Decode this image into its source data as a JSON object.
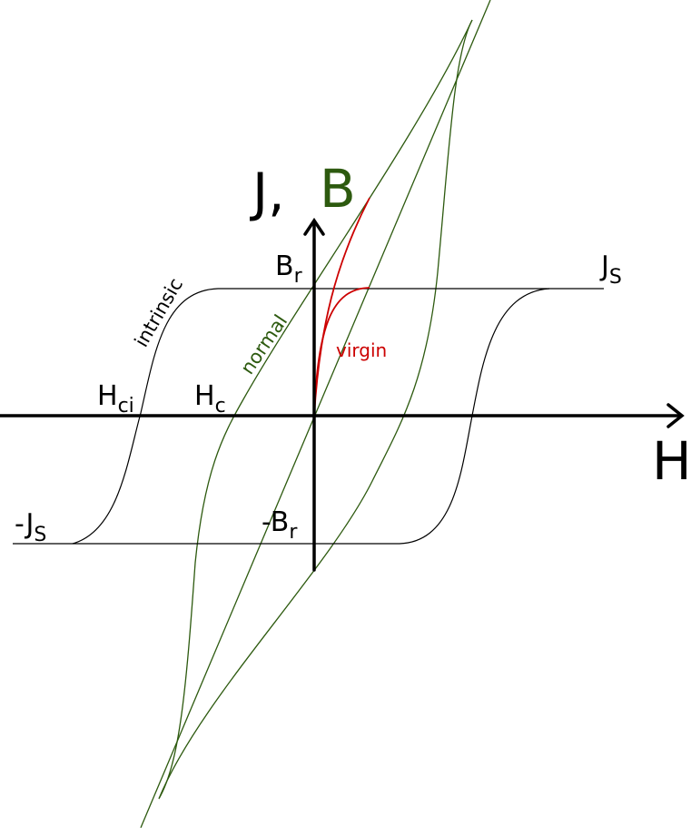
{
  "axes": {
    "vertical_label_j": "J,",
    "vertical_label_b": "B",
    "horizontal_label": "H"
  },
  "labels": {
    "br": {
      "main": "B",
      "sub": "r"
    },
    "neg_br": {
      "main": "-B",
      "sub": "r"
    },
    "js": {
      "main": "J",
      "sub": "S"
    },
    "neg_js": {
      "main": "-J",
      "sub": "S"
    },
    "hci": {
      "main": "H",
      "sub": "ci"
    },
    "hc": {
      "main": "H",
      "sub": "c"
    }
  },
  "curve_names": {
    "intrinsic": "intrinsic",
    "normal": "normal",
    "virgin": "virgin"
  },
  "colors": {
    "black": "#000000",
    "green": "#2d5a0f",
    "red": "#cc0000"
  }
}
